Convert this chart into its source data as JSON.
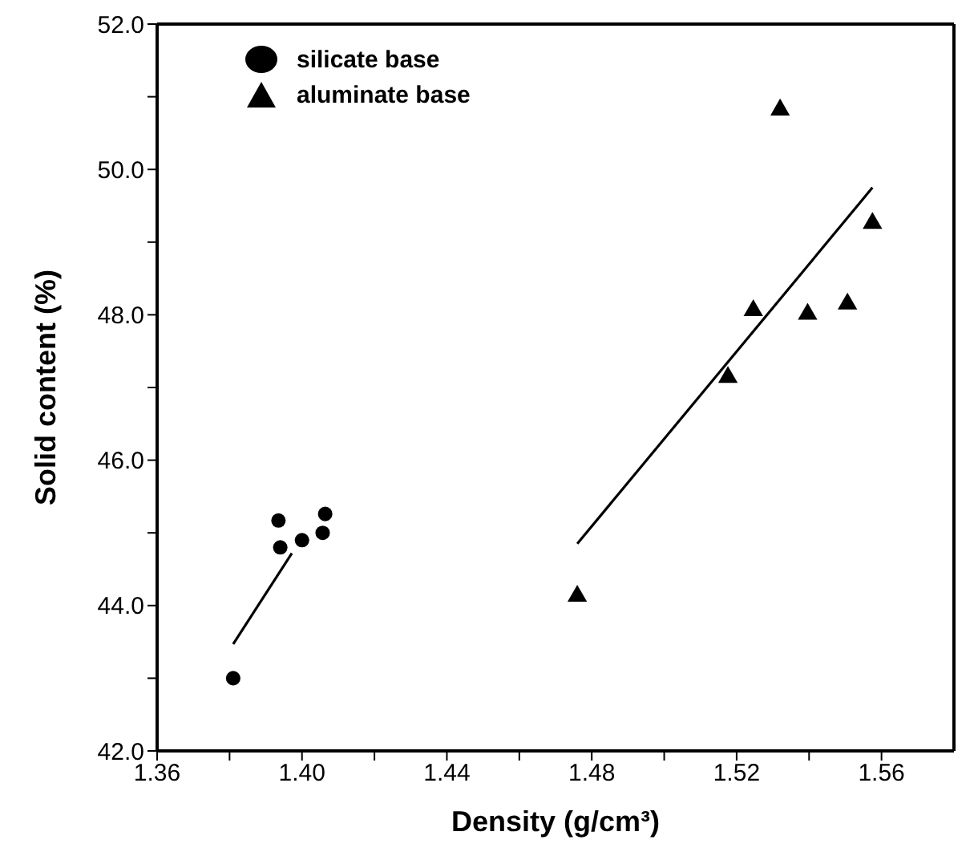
{
  "chart_data": {
    "type": "scatter",
    "xlabel": "Density (g/cm³)",
    "ylabel": "Solid content (%)",
    "xlim": [
      1.36,
      1.58
    ],
    "xticks": [
      {
        "value": 1.36,
        "label": "1.36"
      },
      {
        "value": 1.38,
        "label": null
      },
      {
        "value": 1.4,
        "label": "1.40"
      },
      {
        "value": 1.42,
        "label": null
      },
      {
        "value": 1.44,
        "label": "1.44"
      },
      {
        "value": 1.46,
        "label": null
      },
      {
        "value": 1.48,
        "label": "1.48"
      },
      {
        "value": 1.5,
        "label": null
      },
      {
        "value": 1.52,
        "label": "1.52"
      },
      {
        "value": 1.54,
        "label": null
      },
      {
        "value": 1.56,
        "label": "1.56"
      }
    ],
    "ylim": [
      42,
      52
    ],
    "yticks": [
      {
        "value": 42,
        "label": "42.0"
      },
      {
        "value": 43,
        "label": null
      },
      {
        "value": 44,
        "label": "44.0"
      },
      {
        "value": 45,
        "label": null
      },
      {
        "value": 46,
        "label": "46.0"
      },
      {
        "value": 47,
        "label": null
      },
      {
        "value": 48,
        "label": "48.0"
      },
      {
        "value": 49,
        "label": null
      },
      {
        "value": 50,
        "label": "50.0"
      },
      {
        "value": 51,
        "label": null
      },
      {
        "value": 52,
        "label": "52.0"
      }
    ],
    "grid": false,
    "legend": "top left",
    "series": [
      {
        "name": "silicate base",
        "marker": "circle",
        "color": "#000000",
        "x": [
          1.381,
          1.3935,
          1.394,
          1.4,
          1.4057,
          1.4064
        ],
        "values": [
          43.0,
          45.17,
          44.8,
          44.9,
          45.0,
          45.26
        ]
      },
      {
        "name": "aluminate base",
        "marker": "triangle",
        "color": "#000000",
        "x": [
          1.476,
          1.5176,
          1.5246,
          1.532,
          1.5396,
          1.5506,
          1.5575
        ],
        "values": [
          44.13,
          47.14,
          48.06,
          50.82,
          48.01,
          48.15,
          49.26
        ]
      },
      {
        "type": "line",
        "marker": "none",
        "color": "#000000",
        "x": [
          1.381,
          1.3972
        ],
        "values": [
          43.47,
          44.72
        ]
      },
      {
        "type": "line",
        "marker": "none",
        "color": "#000000",
        "x": [
          1.476,
          1.5575
        ],
        "values": [
          44.85,
          49.75
        ]
      }
    ]
  }
}
